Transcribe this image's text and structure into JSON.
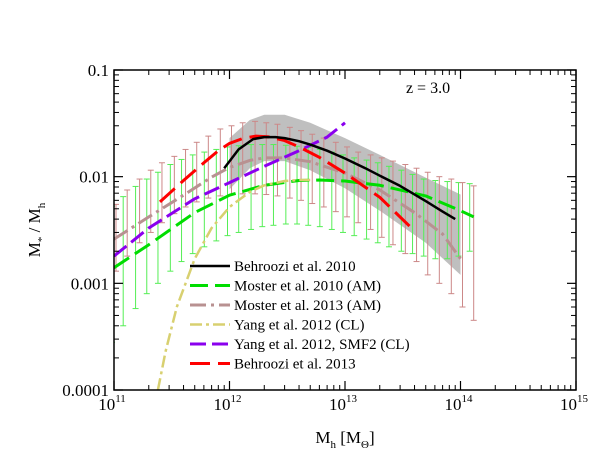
{
  "chart_data": {
    "type": "line",
    "x_scale": "log",
    "y_scale": "log",
    "xlim": [
      100000000000.0,
      1000000000000000.0
    ],
    "ylim": [
      0.0001,
      0.1
    ],
    "xlabel": {
      "main": "M",
      "sub": "h",
      "unit": " [M",
      "unit_sub": "Θ",
      "unit_close": "]"
    },
    "ylabel": {
      "main": "M",
      "sub": "*",
      "slash": " / M",
      "sub2": "h"
    },
    "x_ticks": [
      {
        "base": "10",
        "exp": "11",
        "value": 100000000000.0
      },
      {
        "base": "10",
        "exp": "12",
        "value": 1000000000000.0
      },
      {
        "base": "10",
        "exp": "13",
        "value": 10000000000000.0
      },
      {
        "base": "10",
        "exp": "14",
        "value": 100000000000000.0
      },
      {
        "base": "10",
        "exp": "15",
        "value": 1000000000000000.0
      }
    ],
    "y_ticks": [
      {
        "label": "0.0001",
        "value": 0.0001
      },
      {
        "label": "0.001",
        "value": 0.001
      },
      {
        "label": "0.01",
        "value": 0.01
      },
      {
        "label": "0.1",
        "value": 0.1
      }
    ],
    "annotation": "z = 3.0",
    "legend_position": "lower-center",
    "behroozi2010_band": {
      "x": [
        1000000000000.0,
        1500000000000.0,
        2000000000000.0,
        3000000000000.0,
        5000000000000.0,
        10000000000000.0,
        20000000000000.0,
        50000000000000.0,
        100000000000000.0
      ],
      "upper": [
        0.023,
        0.034,
        0.038,
        0.038,
        0.032,
        0.023,
        0.016,
        0.0098,
        0.0068
      ],
      "lower": [
        0.0076,
        0.012,
        0.014,
        0.014,
        0.0115,
        0.0078,
        0.0048,
        0.0024,
        0.0012
      ]
    },
    "series": [
      {
        "name": "Behroozi et al. 2010",
        "color": "#000000",
        "dash": "solid",
        "width": 2.5,
        "x": [
          900000000000.0,
          1200000000000.0,
          1600000000000.0,
          2000000000000.0,
          2500000000000.0,
          3000000000000.0,
          4000000000000.0,
          5000000000000.0,
          7000000000000.0,
          10000000000000.0,
          15000000000000.0,
          20000000000000.0,
          30000000000000.0,
          50000000000000.0,
          70000000000000.0,
          90000000000000.0
        ],
        "y": [
          0.012,
          0.018,
          0.0225,
          0.0235,
          0.0235,
          0.023,
          0.0215,
          0.02,
          0.0175,
          0.0148,
          0.012,
          0.0102,
          0.0082,
          0.0059,
          0.0047,
          0.004
        ]
      },
      {
        "name": "Moster et al. 2010 (AM)",
        "color": "#00dd00",
        "dash": "18,7",
        "width": 3,
        "x": [
          100000000000.0,
          200000000000.0,
          500000000000.0,
          1000000000000.0,
          2000000000000.0,
          4000000000000.0,
          6000000000000.0,
          10000000000000.0,
          20000000000000.0,
          50000000000000.0,
          100000000000000.0,
          130000000000000.0
        ],
        "y": [
          0.0014,
          0.0023,
          0.0046,
          0.0067,
          0.0083,
          0.0092,
          0.0093,
          0.0091,
          0.0083,
          0.0066,
          0.0048,
          0.0042
        ]
      },
      {
        "name": "Moster et al. 2013 (AM)",
        "color": "#b89191",
        "dash": "16,5,3,5",
        "width": 3,
        "x": [
          100000000000.0,
          200000000000.0,
          400000000000.0,
          700000000000.0,
          1000000000000.0,
          1500000000000.0,
          2000000000000.0,
          3000000000000.0,
          5000000000000.0,
          10000000000000.0,
          20000000000000.0,
          40000000000000.0,
          70000000000000.0,
          100000000000000.0
        ],
        "y": [
          0.0026,
          0.0042,
          0.0067,
          0.0099,
          0.0122,
          0.0142,
          0.015,
          0.015,
          0.0138,
          0.0108,
          0.0075,
          0.0046,
          0.0029,
          0.0017
        ]
      },
      {
        "name": "Yang et al. 2012 (CL)",
        "color": "#d8d070",
        "dash": "12,4,3,4",
        "width": 2.5,
        "x": [
          240000000000.0,
          280000000000.0,
          350000000000.0,
          500000000000.0,
          700000000000.0,
          1000000000000.0,
          1500000000000.0,
          2000000000000.0,
          3000000000000.0,
          4000000000000.0,
          5000000000000.0
        ],
        "y": [
          0.0001,
          0.00023,
          0.0006,
          0.0017,
          0.0033,
          0.0052,
          0.0072,
          0.0083,
          0.0091,
          0.0093,
          0.0093
        ]
      },
      {
        "name": "Yang et al. 2012, SMF2 (CL)",
        "color": "#8a00ee",
        "dash": "16,6",
        "width": 3,
        "x": [
          100000000000.0,
          200000000000.0,
          500000000000.0,
          1000000000000.0,
          2000000000000.0,
          4000000000000.0,
          7000000000000.0,
          10000000000000.0
        ],
        "y": [
          0.0018,
          0.0033,
          0.0062,
          0.0088,
          0.0125,
          0.0175,
          0.0235,
          0.032
        ]
      },
      {
        "name": "Behroozi et al. 2013",
        "color": "#ff0000",
        "dash": "20,8",
        "width": 3,
        "x": [
          250000000000.0,
          400000000000.0,
          600000000000.0,
          800000000000.0,
          1000000000000.0,
          1300000000000.0,
          1700000000000.0,
          2200000000000.0,
          3000000000000.0,
          4000000000000.0,
          6000000000000.0,
          10000000000000.0,
          20000000000000.0,
          40000000000000.0
        ],
        "y": [
          0.0058,
          0.0092,
          0.0135,
          0.0175,
          0.0205,
          0.0228,
          0.024,
          0.0236,
          0.0218,
          0.019,
          0.0152,
          0.0108,
          0.0064,
          0.0031
        ]
      }
    ],
    "errorbar_sets": [
      {
        "name": "Moster et al. 2010 (AM)",
        "color": "#55ee55",
        "x": [
          100000000000.0,
          125000000000.0,
          160000000000.0,
          200000000000.0,
          250000000000.0,
          320000000000.0,
          400000000000.0,
          500000000000.0,
          630000000000.0,
          800000000000.0,
          1000000000000.0,
          1250000000000.0,
          1600000000000.0,
          2000000000000.0,
          2500000000000.0,
          3200000000000.0,
          4000000000000.0,
          5000000000000.0,
          6300000000000.0,
          8000000000000.0,
          10000000000000.0,
          12500000000000.0,
          16000000000000.0,
          20000000000000.0,
          25000000000000.0,
          32000000000000.0,
          40000000000000.0,
          50000000000000.0,
          63000000000000.0,
          80000000000000.0,
          100000000000000.0,
          125000000000000.0
        ],
        "upper": [
          0.0053,
          0.0065,
          0.0081,
          0.0095,
          0.011,
          0.013,
          0.0145,
          0.016,
          0.017,
          0.018,
          0.019,
          0.0195,
          0.02,
          0.02,
          0.02,
          0.0197,
          0.0193,
          0.0188,
          0.018,
          0.017,
          0.016,
          0.015,
          0.0143,
          0.0135,
          0.0125,
          0.0115,
          0.0105,
          0.0095,
          0.0092,
          0.009,
          0.0088,
          0.0086
        ],
        "lower": [
          0.00028,
          0.0004,
          0.00058,
          0.0008,
          0.001,
          0.0013,
          0.0016,
          0.0019,
          0.0022,
          0.0025,
          0.0028,
          0.003,
          0.0032,
          0.0034,
          0.0035,
          0.0036,
          0.0036,
          0.0035,
          0.0034,
          0.0032,
          0.003,
          0.0028,
          0.0026,
          0.0024,
          0.0022,
          0.002,
          0.0019,
          0.0018,
          0.0017,
          0.0017,
          0.0018,
          0.002
        ]
      },
      {
        "name": "Moster et al. 2013 (AM)",
        "color": "#cc8888",
        "x": [
          100000000000.0,
          125000000000.0,
          160000000000.0,
          200000000000.0,
          250000000000.0,
          320000000000.0,
          400000000000.0,
          500000000000.0,
          630000000000.0,
          800000000000.0,
          1000000000000.0,
          1250000000000.0,
          1600000000000.0,
          2000000000000.0,
          2500000000000.0,
          3200000000000.0,
          4000000000000.0,
          5000000000000.0,
          6300000000000.0,
          8000000000000.0,
          10000000000000.0,
          12500000000000.0,
          16000000000000.0,
          20000000000000.0,
          25000000000000.0,
          32000000000000.0,
          40000000000000.0,
          50000000000000.0,
          63000000000000.0,
          80000000000000.0,
          100000000000000.0,
          125000000000000.0
        ],
        "upper": [
          0.0055,
          0.0075,
          0.0095,
          0.0115,
          0.0135,
          0.0155,
          0.018,
          0.021,
          0.024,
          0.028,
          0.03,
          0.032,
          0.033,
          0.032,
          0.031,
          0.029,
          0.027,
          0.025,
          0.023,
          0.021,
          0.019,
          0.017,
          0.016,
          0.015,
          0.014,
          0.013,
          0.012,
          0.011,
          0.01,
          0.0095,
          0.0088,
          0.0082
        ],
        "lower": [
          0.0013,
          0.0018,
          0.0024,
          0.003,
          0.0037,
          0.0045,
          0.0052,
          0.0058,
          0.0063,
          0.0066,
          0.0068,
          0.0069,
          0.0069,
          0.0068,
          0.0066,
          0.0063,
          0.006,
          0.0056,
          0.0052,
          0.0047,
          0.0042,
          0.0037,
          0.0032,
          0.0027,
          0.0023,
          0.0019,
          0.0016,
          0.0012,
          0.001,
          0.0008,
          0.0006,
          0.00045
        ]
      }
    ]
  }
}
